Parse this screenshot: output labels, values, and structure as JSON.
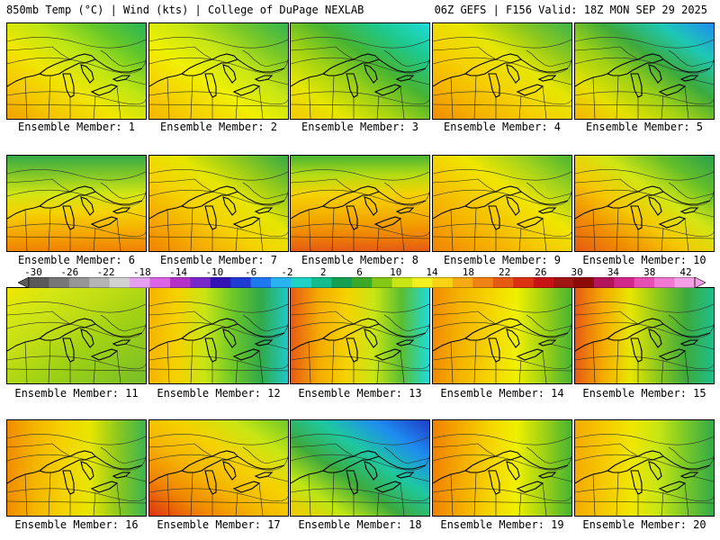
{
  "header": {
    "left": "850mb Temp (°C) | Wind (kts) | College of DuPage NEXLAB",
    "right": "06Z GEFS | F156 Valid: 18Z MON SEP 29 2025"
  },
  "colorbar": {
    "labels": [
      "-30",
      "-26",
      "-22",
      "-18",
      "-14",
      "-10",
      "-6",
      "-2",
      "2",
      "6",
      "10",
      "14",
      "18",
      "22",
      "26",
      "30",
      "34",
      "38",
      "42"
    ],
    "colors": [
      "#5a5a5a",
      "#787878",
      "#969696",
      "#b4b4b4",
      "#d2d2d2",
      "#e6a0f0",
      "#dc64e6",
      "#b432c8",
      "#7828c8",
      "#3214b4",
      "#1e3cd2",
      "#1e78f0",
      "#28b4f0",
      "#1ed2c8",
      "#14be8c",
      "#14a050",
      "#3caa28",
      "#82c814",
      "#c8e614",
      "#f0f01e",
      "#fad214",
      "#f5aa14",
      "#f08214",
      "#e65a14",
      "#dc3214",
      "#c81414",
      "#a01414",
      "#8c0a0a",
      "#b4145a",
      "#d2288c",
      "#e650b4",
      "#f078d2",
      "#f5a0e6"
    ]
  },
  "panels": [
    {
      "label": "Ensemble Member: 1",
      "palette": [
        "#f0a000",
        "#f5c800",
        "#f0e600",
        "#bee614",
        "#64c828",
        "#28b45a"
      ],
      "cold": "NE"
    },
    {
      "label": "Ensemble Member: 2",
      "palette": [
        "#f5b400",
        "#f5d200",
        "#f0f000",
        "#c8e614",
        "#78c828",
        "#32b450"
      ],
      "cold": "NE"
    },
    {
      "label": "Ensemble Member: 3",
      "palette": [
        "#f5c800",
        "#e6e600",
        "#a0d214",
        "#46b432",
        "#1ec88c",
        "#1edcdc"
      ],
      "cold": "NE"
    },
    {
      "label": "Ensemble Member: 4",
      "palette": [
        "#f08c00",
        "#f5b400",
        "#f5d200",
        "#e6e600",
        "#8cc81e",
        "#3cb44b"
      ],
      "cold": "NE"
    },
    {
      "label": "Ensemble Member: 5",
      "palette": [
        "#f5b400",
        "#e6e000",
        "#a0d214",
        "#3caa3c",
        "#1ec8b4",
        "#1e8cf0"
      ],
      "cold": "NE"
    },
    {
      "label": "Ensemble Member: 6",
      "palette": [
        "#f08200",
        "#f5aa00",
        "#f5d200",
        "#d2e614",
        "#82c828",
        "#32aa46"
      ],
      "cold": "N"
    },
    {
      "label": "Ensemble Member: 7",
      "palette": [
        "#f08200",
        "#f5aa00",
        "#f5d200",
        "#e6e600",
        "#8cc81e",
        "#32aa46"
      ],
      "cold": "NE"
    },
    {
      "label": "Ensemble Member: 8",
      "palette": [
        "#e65a14",
        "#f08c00",
        "#f5b400",
        "#f5d200",
        "#b4dc14",
        "#46b432"
      ],
      "cold": "N"
    },
    {
      "label": "Ensemble Member: 9",
      "palette": [
        "#f08200",
        "#f5aa00",
        "#f5c800",
        "#f0e600",
        "#a0d21e",
        "#46b432"
      ],
      "cold": "NE"
    },
    {
      "label": "Ensemble Member: 10",
      "palette": [
        "#e65a14",
        "#f08c00",
        "#f5c800",
        "#d2e614",
        "#64be28",
        "#28a050"
      ],
      "cold": "NE"
    },
    {
      "label": "Ensemble Member: 11",
      "palette": [
        "#f0e600",
        "#d2e614",
        "#bedc14",
        "#a0d214",
        "#8cc81e",
        "#78be28"
      ],
      "cold": "SE"
    },
    {
      "label": "Ensemble Member: 12",
      "palette": [
        "#f5b400",
        "#f5d200",
        "#c8e614",
        "#6ec828",
        "#32aa46",
        "#1ec8c8"
      ],
      "cold": "E"
    },
    {
      "label": "Ensemble Member: 13",
      "palette": [
        "#e65a14",
        "#f5aa00",
        "#f5d200",
        "#c8e614",
        "#5abe32",
        "#1edcdc"
      ],
      "cold": "E"
    },
    {
      "label": "Ensemble Member: 14",
      "palette": [
        "#f08c00",
        "#f5b400",
        "#f5d200",
        "#f0f000",
        "#a0d214",
        "#46b432"
      ],
      "cold": "E"
    },
    {
      "label": "Ensemble Member: 15",
      "palette": [
        "#e65a14",
        "#f5aa00",
        "#e6e600",
        "#8cc81e",
        "#3caa3c",
        "#1ebe8c"
      ],
      "cold": "E"
    },
    {
      "label": "Ensemble Member: 16",
      "palette": [
        "#f08c00",
        "#f5b400",
        "#f5d200",
        "#e6e600",
        "#8cc81e",
        "#3cb450"
      ],
      "cold": "E"
    },
    {
      "label": "Ensemble Member: 17",
      "palette": [
        "#dc3214",
        "#f08200",
        "#f5b400",
        "#f5d200",
        "#c8e614",
        "#6ec828"
      ],
      "cold": "NE"
    },
    {
      "label": "Ensemble Member: 18",
      "palette": [
        "#f5c800",
        "#bee614",
        "#3caa3c",
        "#1ec8a0",
        "#1e8cf0",
        "#1e3cc8"
      ],
      "cold": "NE"
    },
    {
      "label": "Ensemble Member: 19",
      "palette": [
        "#f08200",
        "#f5aa00",
        "#f5d200",
        "#f0f000",
        "#a0d214",
        "#46b432"
      ],
      "cold": "E"
    },
    {
      "label": "Ensemble Member: 20",
      "palette": [
        "#f5aa00",
        "#f5c800",
        "#f0e600",
        "#c8e614",
        "#78c828",
        "#32aa46"
      ],
      "cold": "E"
    }
  ]
}
